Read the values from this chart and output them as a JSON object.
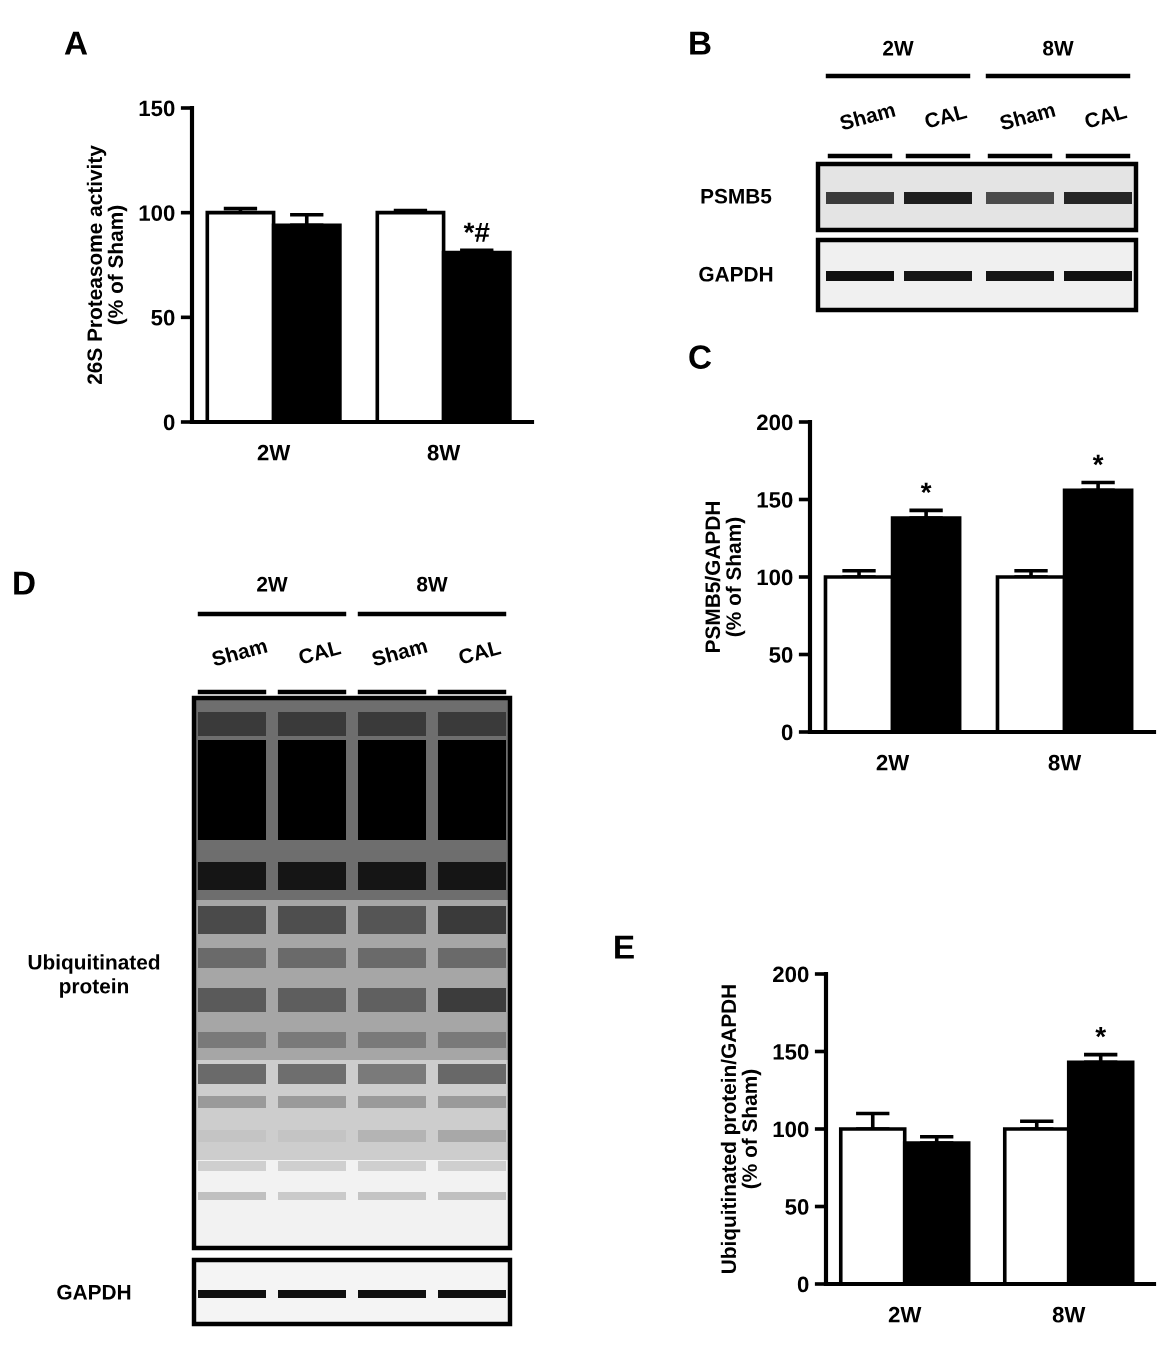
{
  "chart_data": [
    {
      "type": "bar",
      "title": "A",
      "ylabel": "26S Proteasome activity\n(% of Sham)",
      "categories": [
        "2W",
        "8W"
      ],
      "series": [
        {
          "color": "#ffffff",
          "values": [
            100,
            100
          ],
          "errors": [
            [
              100,
              102
            ],
            [
              100,
              101
            ]
          ]
        },
        {
          "color": "#000000",
          "values": [
            94,
            81
          ],
          "errors": [
            [
              94,
              99
            ],
            [
              81,
              82
            ]
          ]
        }
      ],
      "ylim": [
        0,
        150
      ],
      "yticks": [
        0,
        50,
        100,
        150
      ],
      "annotations": [
        {
          "text": "*#",
          "x": "8W",
          "y": 82
        }
      ]
    },
    {
      "type": "other",
      "title": "B",
      "annotations": [
        "2W",
        "8W",
        "Sham",
        "CAL",
        "Sham",
        "CAL",
        "PSMB5",
        "GAPDH"
      ]
    },
    {
      "type": "bar",
      "title": "C",
      "ylabel": "PSMB5/GAPDH\n(% of Sham)",
      "categories": [
        "2W",
        "8W"
      ],
      "series": [
        {
          "color": "#ffffff",
          "values": [
            100,
            100
          ],
          "errors": [
            [
              100,
              104
            ],
            [
              100,
              104
            ]
          ]
        },
        {
          "color": "#000000",
          "values": [
            138,
            156
          ],
          "errors": [
            [
              138,
              143
            ],
            [
              156,
              161
            ]
          ]
        }
      ],
      "ylim": [
        0,
        200
      ],
      "yticks": [
        0,
        50,
        100,
        150,
        200
      ],
      "annotations": [
        {
          "text": "*",
          "x": "2W",
          "y": 143
        },
        {
          "text": "*",
          "x": "8W",
          "y": 161
        }
      ]
    },
    {
      "type": "other",
      "title": "D",
      "annotations": [
        "2W",
        "8W",
        "Sham",
        "CAL",
        "Sham",
        "CAL",
        "Ubiquitinated\nprotein",
        "GAPDH"
      ]
    },
    {
      "type": "bar",
      "title": "E",
      "ylabel": "Ubiquitinated protein/GAPDH\n(% of Sham)",
      "categories": [
        "2W",
        "8W"
      ],
      "series": [
        {
          "color": "#ffffff",
          "values": [
            100,
            100
          ],
          "errors": [
            [
              100,
              110
            ],
            [
              100,
              105
            ]
          ]
        },
        {
          "color": "#000000",
          "values": [
            91,
            143
          ],
          "errors": [
            [
              91,
              95
            ],
            [
              143,
              148
            ]
          ]
        }
      ],
      "ylim": [
        0,
        200
      ],
      "yticks": [
        0,
        50,
        100,
        150,
        200
      ],
      "annotations": [
        {
          "text": "*",
          "x": "8W",
          "y": 148
        }
      ]
    }
  ]
}
